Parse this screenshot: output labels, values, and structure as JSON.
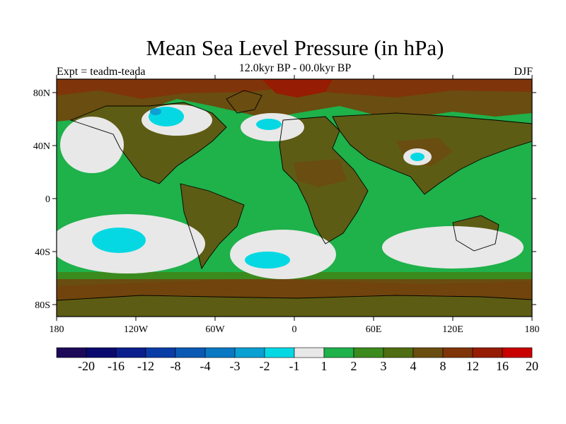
{
  "title": "Mean Sea Level Pressure (in hPa)",
  "subtitle": "12.0kyr BP - 00.0kyr BP",
  "left_label": "Expt = teadm-teada",
  "right_label": "DJF",
  "lat_ticks": [
    "80N",
    "40N",
    "0",
    "40S",
    "80S"
  ],
  "lon_ticks": [
    "180",
    "120W",
    "60W",
    "0",
    "60E",
    "120E",
    "180"
  ],
  "colorbar": {
    "labels": [
      "-20",
      "-16",
      "-12",
      "-8",
      "-4",
      "-3",
      "-2",
      "-1",
      "1",
      "2",
      "3",
      "4",
      "8",
      "12",
      "16",
      "20"
    ],
    "colors": [
      "#1c0a58",
      "#0a0a6e",
      "#0a1e8c",
      "#0a3ca6",
      "#0a5ab4",
      "#0a78c3",
      "#0aa0d2",
      "#05d8e3",
      "#e8e8e8",
      "#1fb14a",
      "#3b8a1e",
      "#4f6d12",
      "#6a4d10",
      "#7f3509",
      "#961c03",
      "#c80000"
    ]
  },
  "colors": {
    "ocean_green": "#1fb14a",
    "land_olive": "#5d5c14",
    "high_brown": "#6a4d10",
    "neutral_gray": "#e8e8e8",
    "cyan": "#05d8e3",
    "red": "#961c03"
  }
}
